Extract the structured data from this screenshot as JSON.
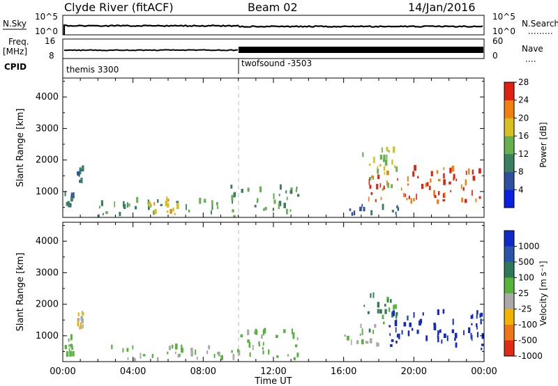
{
  "header": {
    "station": "Clyde River (fitACF)",
    "beam": "Beam 02",
    "date": "14/Jan/2016"
  },
  "top_panels": {
    "nsky_label": "N.Sky",
    "nsky_ticks": [
      "10^5",
      "10^0"
    ],
    "nsearch_label": "N.Search",
    "nsearch_ticks": [
      "10^5",
      "10^0"
    ],
    "freq_label_top": "Freq.",
    "freq_label_unit": "[MHz]",
    "freq_ticks": [
      "16",
      "8"
    ],
    "nave_label": "Nave",
    "nave_ticks": [
      "60",
      "0"
    ],
    "cpid_label": "CPID",
    "cpid_segments": [
      {
        "name": "themis 3300",
        "start_hour": 0
      },
      {
        "name": "twofsound -3503",
        "start_hour": 10
      }
    ]
  },
  "axes": {
    "ylabel": "Slant Range [km]",
    "xlabel": "Time UT",
    "xtick_labels": [
      "00:00",
      "04:00",
      "08:00",
      "12:00",
      "16:00",
      "20:00",
      "00:00"
    ],
    "ytick_labels": [
      "1000",
      "2000",
      "3000",
      "4000"
    ]
  },
  "colorbars": {
    "power": {
      "label": "Power [dB]",
      "tick_labels": [
        "4",
        "8",
        "12",
        "16",
        "20",
        "24",
        "28"
      ],
      "colors": [
        "#0b1fe0",
        "#2f4fa0",
        "#3a8060",
        "#66b050",
        "#d8c020",
        "#f08010",
        "#e02010"
      ]
    },
    "velocity": {
      "label": "Velocity [m s⁻¹]",
      "tick_labels": [
        "1000",
        "500",
        "100",
        "25",
        "-25",
        "-100",
        "-500",
        "-1000"
      ],
      "colors": [
        "#1028c8",
        "#2a54a8",
        "#2f7858",
        "#57b33a",
        "#a9a9a9",
        "#f0b400",
        "#f07418",
        "#e02a14"
      ]
    }
  },
  "chart_data": [
    {
      "type": "heatmap",
      "title": "Power",
      "xlabel": "Time UT",
      "ylabel": "Slant Range [km]",
      "xlim": [
        0,
        24
      ],
      "ylim": [
        180,
        4600
      ],
      "colorbar_label": "Power [dB]",
      "colorbar_range": [
        0,
        30
      ],
      "regions": [
        {
          "t": [
            0.1,
            0.6
          ],
          "r": [
            300,
            900
          ],
          "value": 10
        },
        {
          "t": [
            0.8,
            1.1
          ],
          "r": [
            1200,
            1700
          ],
          "value": 9
        },
        {
          "t": [
            2.0,
            9.0
          ],
          "r": [
            180,
            650
          ],
          "value": 12
        },
        {
          "t": [
            4.5,
            6.5
          ],
          "r": [
            250,
            700
          ],
          "value": 20
        },
        {
          "t": [
            9.5,
            13.5
          ],
          "r": [
            180,
            1100
          ],
          "value": 12
        },
        {
          "t": [
            16.0,
            19.5
          ],
          "r": [
            180,
            500
          ],
          "value": 8
        },
        {
          "t": [
            17.0,
            19.0
          ],
          "r": [
            1000,
            2300
          ],
          "value": 18
        },
        {
          "t": [
            17.2,
            23.9
          ],
          "r": [
            600,
            1700
          ],
          "value": 26
        }
      ]
    },
    {
      "type": "heatmap",
      "title": "Velocity",
      "xlabel": "Time UT",
      "ylabel": "Slant Range [km]",
      "xlim": [
        0,
        24
      ],
      "ylim": [
        180,
        4600
      ],
      "colorbar_label": "Velocity [m s⁻¹]",
      "colorbar_range": [
        -1000,
        1000
      ],
      "regions": [
        {
          "t": [
            0.1,
            0.6
          ],
          "r": [
            300,
            900
          ],
          "value": 80
        },
        {
          "t": [
            0.8,
            1.1
          ],
          "r": [
            1200,
            1700
          ],
          "value": -200
        },
        {
          "t": [
            2.0,
            9.0
          ],
          "r": [
            180,
            650
          ],
          "value": 60
        },
        {
          "t": [
            9.5,
            13.5
          ],
          "r": [
            180,
            1100
          ],
          "value": 60
        },
        {
          "t": [
            16.0,
            18.0
          ],
          "r": [
            600,
            1400
          ],
          "value": -100
        },
        {
          "t": [
            17.0,
            19.0
          ],
          "r": [
            1000,
            2300
          ],
          "value": 300
        },
        {
          "t": [
            18.5,
            23.9
          ],
          "r": [
            500,
            1700
          ],
          "value": 900
        }
      ]
    }
  ]
}
